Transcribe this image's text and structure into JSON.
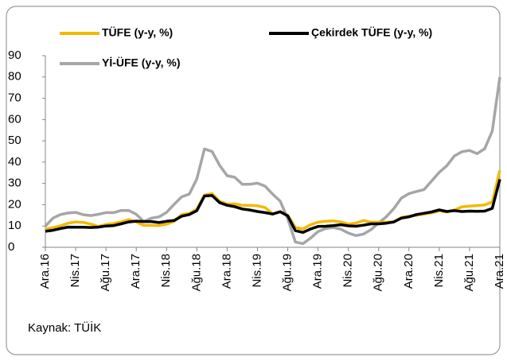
{
  "chart_data": {
    "type": "line",
    "categories": [
      "Ara.16",
      null,
      null,
      null,
      "Nis.17",
      null,
      null,
      null,
      "Ağu.17",
      null,
      null,
      null,
      "Ara.17",
      null,
      null,
      null,
      "Nis.18",
      null,
      null,
      null,
      "Ağu.18",
      null,
      null,
      null,
      "Ara.18",
      null,
      null,
      null,
      "Nis.19",
      null,
      null,
      null,
      "Ağu.19",
      null,
      null,
      null,
      "Ara.19",
      null,
      null,
      null,
      "Nis.20",
      null,
      null,
      null,
      "Ağu.20",
      null,
      null,
      null,
      "Ara.20",
      null,
      null,
      null,
      "Nis.21",
      null,
      null,
      null,
      "Ağu.21",
      null,
      null,
      null,
      "Ara.21"
    ],
    "series": [
      {
        "name": "TÜFE (y-y, %)",
        "color": "#f5b800",
        "values": [
          8.5,
          9.2,
          10.1,
          11.3,
          11.9,
          11.7,
          10.9,
          9.8,
          10.7,
          11.2,
          11.9,
          13.0,
          11.9,
          10.3,
          10.3,
          10.2,
          10.9,
          12.2,
          15.4,
          15.9,
          17.9,
          24.5,
          25.2,
          21.6,
          20.3,
          20.4,
          19.7,
          19.7,
          19.5,
          18.7,
          15.7,
          16.7,
          15.0,
          9.3,
          8.6,
          10.6,
          11.8,
          12.2,
          12.4,
          11.9,
          10.9,
          11.4,
          12.6,
          11.8,
          11.8,
          11.8,
          11.9,
          14.0,
          14.6,
          15.0,
          15.6,
          16.2,
          17.1,
          16.6,
          17.5,
          19.0,
          19.3,
          19.6,
          19.9,
          21.3,
          36.1
        ]
      },
      {
        "name": "Çekirdek TÜFE (y-y, %)",
        "color": "#000000",
        "values": [
          7.5,
          8.0,
          8.8,
          9.5,
          9.4,
          9.4,
          9.3,
          9.5,
          10.0,
          10.2,
          11.0,
          11.9,
          12.3,
          12.1,
          12.1,
          11.6,
          12.2,
          12.6,
          14.6,
          15.4,
          17.2,
          24.1,
          24.3,
          21.0,
          19.7,
          19.1,
          18.0,
          17.5,
          16.8,
          16.3,
          15.6,
          16.7,
          14.8,
          7.8,
          7.0,
          8.6,
          9.8,
          9.9,
          10.2,
          10.6,
          10.1,
          9.9,
          10.4,
          11.0,
          11.0,
          11.3,
          11.9,
          13.7,
          14.3,
          15.4,
          16.0,
          16.6,
          17.6,
          16.8,
          17.2,
          16.8,
          17.0,
          16.9,
          17.0,
          18.3,
          31.9
        ]
      },
      {
        "name": "Yİ-ÜFE (y-y, %)",
        "color": "#a6a6a6",
        "values": [
          9.9,
          13.7,
          15.4,
          16.1,
          16.4,
          15.3,
          14.9,
          15.5,
          16.3,
          16.3,
          17.3,
          17.3,
          15.5,
          12.1,
          13.7,
          14.3,
          16.4,
          20.2,
          23.7,
          25.0,
          32.1,
          46.2,
          45.0,
          38.5,
          33.6,
          32.9,
          29.6,
          29.6,
          30.1,
          28.7,
          25.0,
          21.7,
          13.5,
          2.5,
          1.7,
          4.3,
          7.4,
          8.8,
          9.3,
          8.5,
          6.7,
          5.5,
          6.2,
          8.3,
          11.5,
          14.3,
          18.2,
          23.1,
          25.2,
          26.2,
          27.1,
          31.2,
          35.2,
          38.3,
          42.9,
          44.9,
          45.5,
          44.0,
          46.3,
          54.6,
          79.9
        ]
      }
    ],
    "ylim": [
      0,
      90
    ],
    "yticks": [
      0,
      10,
      20,
      30,
      40,
      50,
      60,
      70,
      80,
      90
    ],
    "source": "Kaynak: TÜİK"
  }
}
